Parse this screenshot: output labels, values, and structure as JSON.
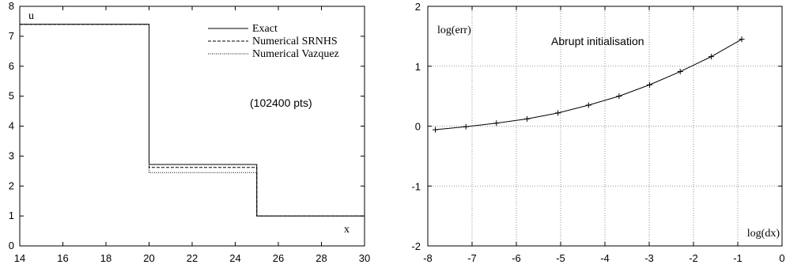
{
  "chart_data": [
    {
      "type": "line",
      "title": "",
      "xlabel": "x",
      "ylabel": "u",
      "xlim": [
        14,
        30
      ],
      "ylim": [
        0,
        8
      ],
      "xticks": [
        14,
        16,
        18,
        20,
        22,
        24,
        26,
        28,
        30
      ],
      "yticks": [
        0,
        1,
        2,
        3,
        4,
        5,
        6,
        7,
        8
      ],
      "grid": false,
      "legend_position": "top-right",
      "annotation": "(102400 pts)",
      "series": [
        {
          "name": "Exact",
          "style": "solid",
          "x": [
            14,
            20,
            20,
            25,
            25,
            30
          ],
          "y": [
            7.4,
            7.4,
            2.72,
            2.72,
            1.0,
            1.0
          ]
        },
        {
          "name": "Numerical SRNHS",
          "style": "dashed",
          "x": [
            14,
            20,
            20,
            25,
            25,
            30
          ],
          "y": [
            7.4,
            7.4,
            2.62,
            2.62,
            1.0,
            1.0
          ]
        },
        {
          "name": "Numerical Vazquez",
          "style": "dotted",
          "x": [
            14,
            20,
            20,
            25,
            25,
            30
          ],
          "y": [
            7.4,
            7.4,
            2.45,
            2.45,
            1.0,
            1.0
          ]
        }
      ]
    },
    {
      "type": "line",
      "title": "",
      "xlabel": "log(dx)",
      "ylabel": "log(err)",
      "xlim": [
        -8,
        0
      ],
      "ylim": [
        -2,
        2
      ],
      "xticks": [
        -8,
        -7,
        -6,
        -5,
        -4,
        -3,
        -2,
        -1,
        0
      ],
      "yticks": [
        -2,
        -1,
        0,
        1,
        2
      ],
      "grid": true,
      "annotation": "Abrupt initialisation",
      "series": [
        {
          "name": "",
          "markers": "plus",
          "x": [
            -7.83,
            -7.14,
            -6.45,
            -5.76,
            -5.06,
            -4.37,
            -3.68,
            -2.99,
            -2.3,
            -1.6,
            -0.91
          ],
          "y": [
            -0.06,
            -0.01,
            0.05,
            0.12,
            0.22,
            0.35,
            0.5,
            0.69,
            0.91,
            1.16,
            1.45
          ]
        }
      ]
    }
  ]
}
